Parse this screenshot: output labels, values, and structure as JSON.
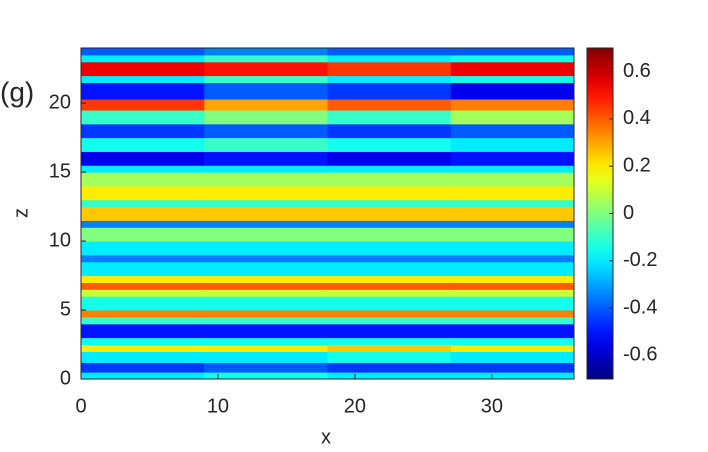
{
  "chart_data": {
    "type": "heatmap",
    "annotation": "(g)",
    "xlabel": "x",
    "ylabel": "z",
    "x_bins": [
      0,
      9,
      18,
      27,
      36
    ],
    "z_bins": [
      0,
      0.5,
      1.2,
      2,
      2.5,
      3,
      4,
      4.5,
      5,
      6,
      6.5,
      7,
      7.5,
      8.5,
      9,
      10,
      11,
      11.5,
      12.5,
      13,
      14,
      15,
      15.5,
      16.5,
      17.5,
      18.5,
      19.5,
      20.3,
      21.5,
      22,
      23,
      23.5,
      24
    ],
    "values": [
      [
        -0.2,
        -0.15,
        -0.2,
        -0.2
      ],
      [
        -0.45,
        -0.4,
        -0.45,
        -0.45
      ],
      [
        -0.2,
        -0.2,
        -0.15,
        -0.2
      ],
      [
        0.2,
        0.2,
        0.25,
        0.2
      ],
      [
        -0.15,
        -0.15,
        -0.15,
        -0.15
      ],
      [
        -0.5,
        -0.5,
        -0.5,
        -0.5
      ],
      [
        -0.1,
        -0.1,
        -0.1,
        -0.1
      ],
      [
        0.35,
        0.35,
        0.35,
        0.35
      ],
      [
        -0.15,
        -0.15,
        -0.15,
        -0.15
      ],
      [
        0.1,
        0.1,
        0.1,
        0.1
      ],
      [
        0.4,
        0.4,
        0.4,
        0.4
      ],
      [
        0.2,
        0.2,
        0.2,
        0.2
      ],
      [
        -0.2,
        -0.2,
        -0.2,
        -0.2
      ],
      [
        -0.35,
        -0.35,
        -0.35,
        -0.35
      ],
      [
        -0.2,
        -0.2,
        -0.2,
        -0.2
      ],
      [
        0,
        0,
        0,
        0
      ],
      [
        -0.35,
        -0.35,
        -0.35,
        -0.35
      ],
      [
        0.25,
        0.25,
        0.25,
        0.25
      ],
      [
        -0.1,
        -0.1,
        -0.1,
        -0.1
      ],
      [
        0.2,
        0.2,
        0.2,
        0.2
      ],
      [
        0.05,
        0.05,
        0.05,
        0.05
      ],
      [
        -0.2,
        -0.2,
        -0.2,
        -0.2
      ],
      [
        -0.55,
        -0.5,
        -0.55,
        -0.5
      ],
      [
        -0.15,
        -0.1,
        -0.15,
        -0.2
      ],
      [
        -0.45,
        -0.4,
        -0.45,
        -0.4
      ],
      [
        -0.1,
        0,
        -0.1,
        0.05
      ],
      [
        0.45,
        0.3,
        0.4,
        0.35
      ],
      [
        -0.5,
        -0.4,
        -0.45,
        -0.55
      ],
      [
        -0.2,
        -0.1,
        -0.2,
        -0.15
      ],
      [
        0.55,
        0.5,
        0.45,
        0.55
      ],
      [
        -0.2,
        -0.1,
        -0.2,
        -0.15
      ],
      [
        -0.4,
        -0.35,
        -0.4,
        -0.4
      ]
    ],
    "xlim": [
      0,
      36
    ],
    "xticks": [
      0,
      10,
      20,
      30
    ],
    "ylim": [
      0,
      24
    ],
    "yticks": [
      0,
      5,
      10,
      15,
      20
    ],
    "colormap": "jet",
    "clim": [
      -0.7,
      0.7
    ],
    "cticks": [
      -0.6,
      -0.4,
      -0.2,
      0,
      0.2,
      0.4,
      0.6
    ]
  }
}
